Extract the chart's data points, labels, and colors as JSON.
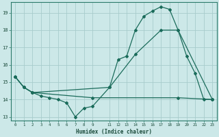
{
  "xlabel": "Humidex (Indice chaleur)",
  "bg_color": "#cce8e8",
  "line_color": "#1a6b5a",
  "grid_color": "#a8cccc",
  "xlim": [
    -0.5,
    23.5
  ],
  "ylim": [
    12.8,
    19.6
  ],
  "xticks": [
    0,
    1,
    2,
    3,
    4,
    5,
    6,
    7,
    8,
    9,
    11,
    12,
    13,
    14,
    15,
    16,
    17,
    18,
    19,
    20,
    21,
    22,
    23
  ],
  "yticks": [
    13,
    14,
    15,
    16,
    17,
    18,
    19
  ],
  "line1_x": [
    0,
    1,
    2,
    3,
    4,
    5,
    6,
    7,
    8,
    9,
    11,
    12,
    13,
    14,
    15,
    16,
    17,
    18,
    19,
    20,
    21,
    22,
    23
  ],
  "line1_y": [
    15.3,
    14.7,
    14.4,
    14.2,
    14.1,
    14.0,
    13.8,
    13.0,
    13.5,
    13.6,
    14.7,
    16.3,
    16.5,
    18.0,
    18.8,
    19.1,
    19.35,
    19.2,
    18.0,
    16.5,
    15.5,
    14.0,
    14.0
  ],
  "line2_x": [
    0,
    1,
    2,
    11,
    14,
    17,
    19,
    23
  ],
  "line2_y": [
    15.3,
    14.7,
    14.4,
    14.7,
    16.6,
    18.0,
    18.0,
    14.0
  ],
  "line3_x": [
    0,
    1,
    2,
    9,
    19,
    23
  ],
  "line3_y": [
    15.3,
    14.7,
    14.4,
    14.1,
    14.1,
    14.0
  ]
}
